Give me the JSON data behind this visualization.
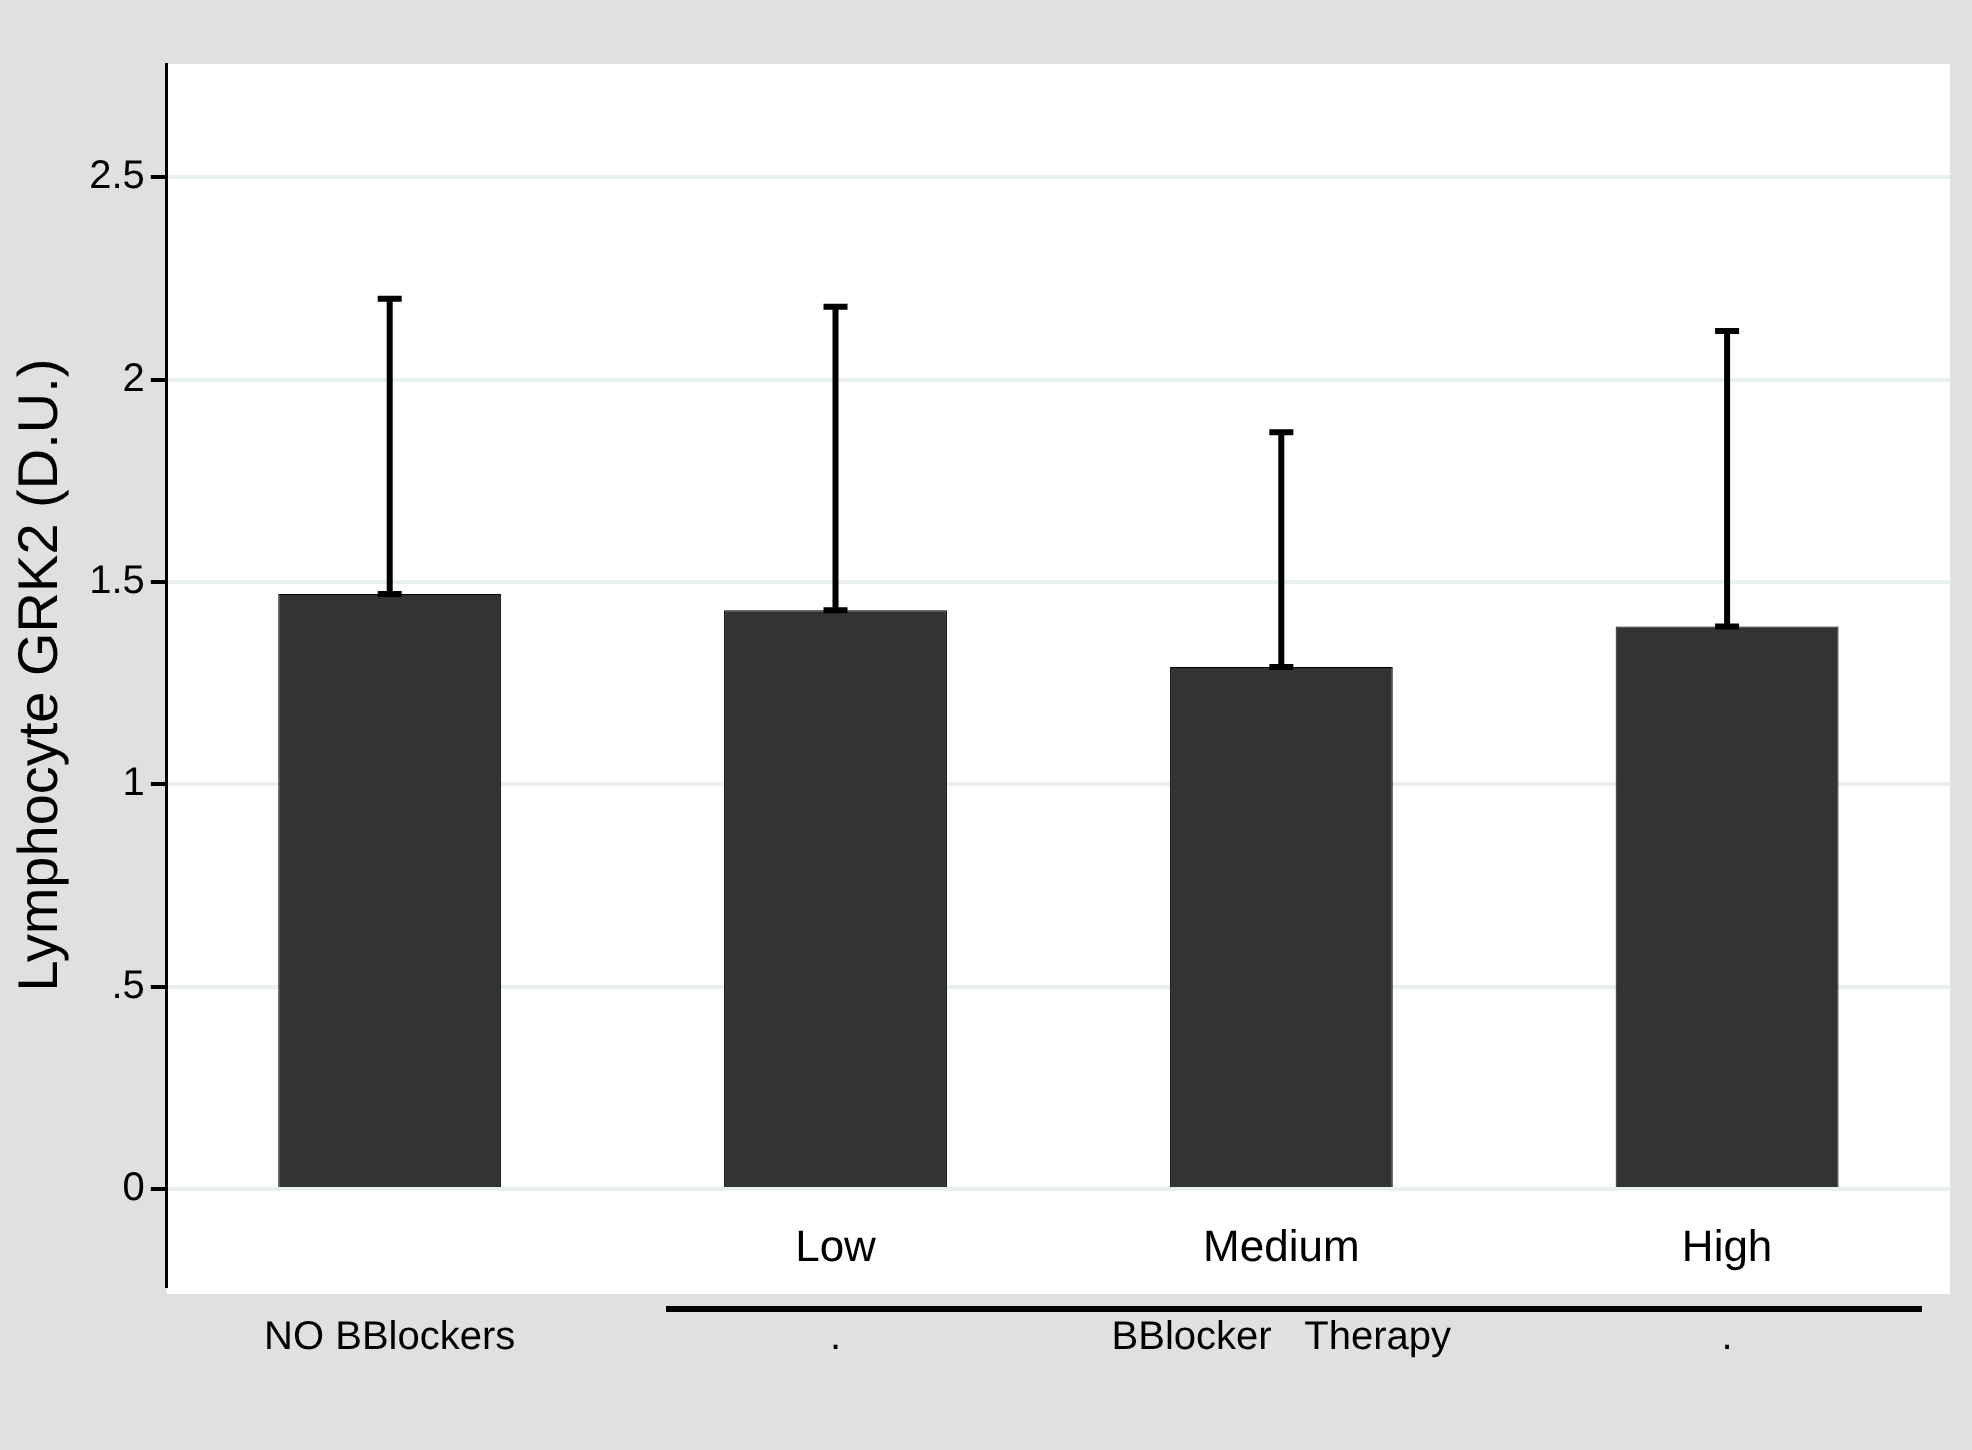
{
  "chart_data": {
    "type": "bar",
    "ylabel": "Lymphocyte GRK2 (D.U.)",
    "categories": [
      "NO BBlockers",
      ".",
      "BBlocker   Therapy",
      "."
    ],
    "values": [
      1.47,
      1.43,
      1.29,
      1.39
    ],
    "errors": [
      [
        1.47,
        2.2
      ],
      [
        1.43,
        2.18
      ],
      [
        1.29,
        1.87
      ],
      [
        1.39,
        2.12
      ]
    ],
    "color": "#333333",
    "ylim": [
      -0.24,
      2.78
    ],
    "yticks": [
      0,
      {
        "value": 0.5,
        "label": ".5"
      },
      1,
      1.5,
      2,
      2.5
    ],
    "grid": "y",
    "annotations": [
      "Low",
      "Medium",
      "High"
    ]
  }
}
